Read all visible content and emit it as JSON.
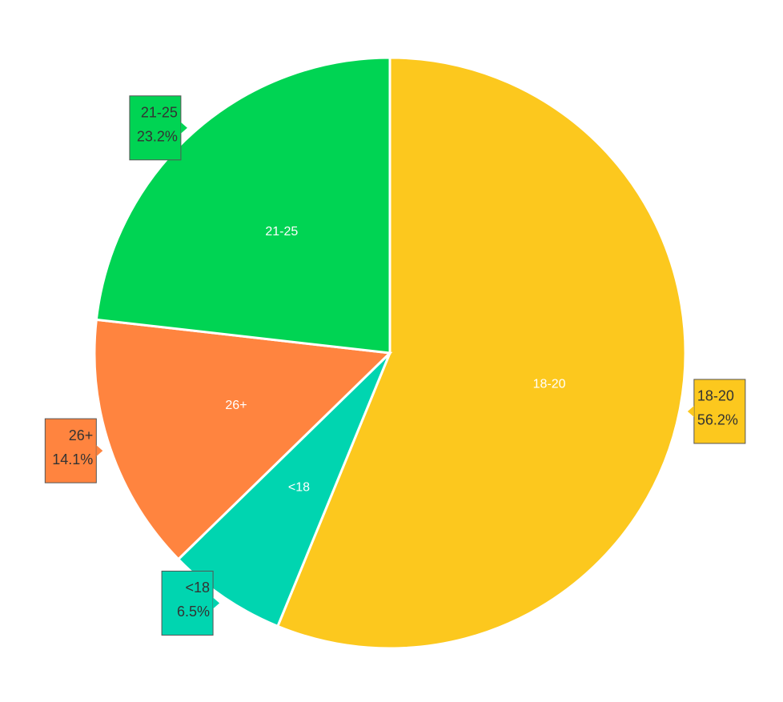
{
  "chart_data": {
    "type": "pie",
    "categories": [
      "18-20",
      "<18",
      "26+",
      "21-25"
    ],
    "values": [
      56.2,
      6.5,
      14.1,
      23.2
    ],
    "value_labels": [
      "56.2%",
      "6.5%",
      "14.1%",
      "23.2%"
    ],
    "colors": [
      "#fcc81e",
      "#00d5b0",
      "#ff843f",
      "#00d453"
    ]
  }
}
